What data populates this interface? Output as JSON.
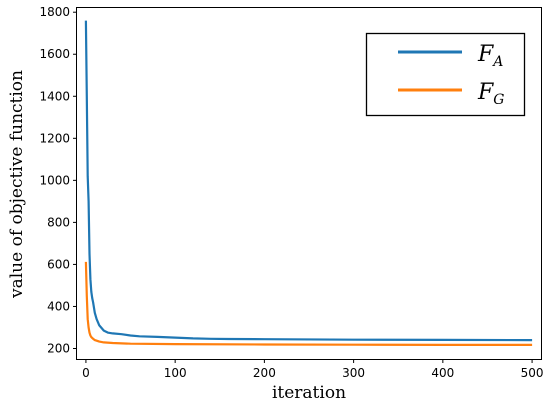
{
  "chart_data": {
    "type": "line",
    "title": "",
    "xlabel": "iteration",
    "ylabel": "value of objective function",
    "xlim": [
      -10,
      510
    ],
    "ylim": [
      150,
      1820
    ],
    "xticks": [
      0,
      100,
      200,
      300,
      400,
      500
    ],
    "yticks": [
      200,
      400,
      600,
      800,
      1000,
      1200,
      1400,
      1600,
      1800
    ],
    "grid": false,
    "legend": {
      "position": "top-right",
      "entries": [
        {
          "main": "F",
          "sub": "A",
          "color": "#1f77b4"
        },
        {
          "main": "F",
          "sub": "G",
          "color": "#ff7f0e"
        }
      ]
    },
    "series": [
      {
        "color": "#1f77b4",
        "x": [
          0,
          1,
          2,
          3,
          4,
          5,
          6,
          7,
          8,
          10,
          12,
          15,
          20,
          25,
          30,
          40,
          50,
          60,
          80,
          100,
          120,
          140,
          160,
          200,
          300,
          400,
          500
        ],
        "y": [
          1760,
          1400,
          1020,
          900,
          650,
          530,
          470,
          440,
          420,
          370,
          340,
          310,
          285,
          275,
          272,
          268,
          262,
          258,
          255,
          252,
          248,
          246,
          245,
          244,
          242,
          241,
          240
        ]
      },
      {
        "color": "#ff7f0e",
        "x": [
          0,
          1,
          2,
          3,
          4,
          5,
          6,
          8,
          10,
          15,
          20,
          30,
          50,
          100,
          200,
          300,
          400,
          500
        ],
        "y": [
          612,
          450,
          340,
          300,
          275,
          262,
          254,
          246,
          240,
          233,
          229,
          226,
          223,
          221,
          219,
          218,
          217,
          217
        ]
      }
    ]
  }
}
